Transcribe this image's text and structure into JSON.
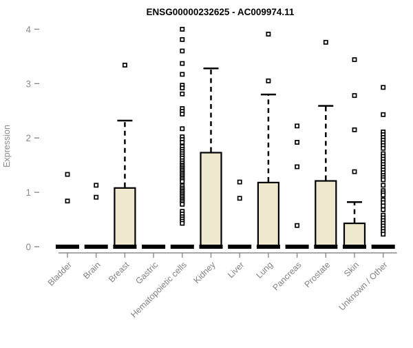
{
  "title": "ENSG00000232625 - AC009974.11",
  "chart_data": {
    "type": "boxplot",
    "title": "ENSG00000232625 - AC009974.11",
    "xlabel": "",
    "ylabel": "Expression",
    "ylim": [
      0,
      4
    ],
    "yticks": [
      0,
      1,
      2,
      3,
      4
    ],
    "grid": false,
    "legend": "none",
    "box_fill": "#ede8ce",
    "box_stroke": "#000000",
    "axis_color": "#8a8a8a",
    "categories": [
      "Bladder",
      "Brain",
      "Breast",
      "Gastric",
      "Hematopoietic cells",
      "Kidney",
      "Liver",
      "Lung",
      "Pancreas",
      "Prostate",
      "Skin",
      "Unknown / Other"
    ],
    "series": [
      {
        "category": "Bladder",
        "q1": 0,
        "median": 0,
        "q3": 0,
        "whisker_low": 0,
        "whisker_high": 0,
        "outliers": [
          0.84,
          1.33
        ]
      },
      {
        "category": "Brain",
        "q1": 0,
        "median": 0,
        "q3": 0,
        "whisker_low": 0,
        "whisker_high": 0,
        "outliers": [
          0.91,
          1.13
        ]
      },
      {
        "category": "Breast",
        "q1": 0,
        "median": 0,
        "q3": 1.08,
        "whisker_low": 0,
        "whisker_high": 2.32,
        "outliers": [
          3.34
        ]
      },
      {
        "category": "Gastric",
        "q1": 0,
        "median": 0,
        "q3": 0,
        "whisker_low": 0,
        "whisker_high": 0,
        "outliers": []
      },
      {
        "category": "Hematopoietic cells",
        "q1": 0,
        "median": 0,
        "q3": 0,
        "whisker_low": 0,
        "whisker_high": 0,
        "outliers": [
          4.0,
          3.81,
          3.6,
          3.37,
          3.17,
          2.97,
          2.92,
          2.81,
          2.54,
          2.49,
          2.44,
          2.17,
          2.02,
          1.97,
          1.92,
          1.84,
          1.79,
          1.75,
          1.71,
          1.67,
          1.63,
          1.58,
          1.54,
          1.5,
          1.47,
          1.44,
          1.41,
          1.38,
          1.35,
          1.32,
          1.29,
          1.26,
          1.23,
          1.2,
          1.12,
          1.08,
          1.05,
          1.02,
          0.99,
          0.96,
          0.93,
          0.9,
          0.87,
          0.84,
          0.81,
          0.78,
          0.65,
          0.6,
          0.55,
          0.51,
          0.47,
          0.43
        ]
      },
      {
        "category": "Kidney",
        "q1": 0,
        "median": 0,
        "q3": 1.73,
        "whisker_low": 0,
        "whisker_high": 3.28,
        "outliers": []
      },
      {
        "category": "Liver",
        "q1": 0,
        "median": 0,
        "q3": 0,
        "whisker_low": 0,
        "whisker_high": 0,
        "outliers": [
          0.89,
          1.19
        ]
      },
      {
        "category": "Lung",
        "q1": 0,
        "median": 0,
        "q3": 1.18,
        "whisker_low": 0,
        "whisker_high": 2.8,
        "outliers": [
          3.05,
          3.91
        ]
      },
      {
        "category": "Pancreas",
        "q1": 0,
        "median": 0,
        "q3": 0,
        "whisker_low": 0,
        "whisker_high": 0,
        "outliers": [
          0.39,
          1.47,
          1.92,
          2.22
        ]
      },
      {
        "category": "Prostate",
        "q1": 0,
        "median": 0,
        "q3": 1.21,
        "whisker_low": 0,
        "whisker_high": 2.59,
        "outliers": [
          3.76
        ]
      },
      {
        "category": "Skin",
        "q1": 0,
        "median": 0,
        "q3": 0.43,
        "whisker_low": 0,
        "whisker_high": 0.82,
        "outliers": [
          1.38,
          2.15,
          2.78,
          3.44
        ]
      },
      {
        "category": "Unknown / Other",
        "q1": 0,
        "median": 0,
        "q3": 0,
        "whisker_low": 0,
        "whisker_high": 0,
        "outliers": [
          2.93,
          2.43,
          2.11,
          2.06,
          2.01,
          1.96,
          1.91,
          1.86,
          1.81,
          1.71,
          1.66,
          1.61,
          1.56,
          1.51,
          1.46,
          1.41,
          1.36,
          1.31,
          1.27,
          1.23,
          1.13,
          1.03,
          0.99,
          0.95,
          0.86,
          0.81,
          0.75,
          0.68,
          0.58,
          0.53,
          0.48,
          0.43,
          0.38,
          0.33,
          0.28,
          0.23
        ]
      }
    ]
  }
}
